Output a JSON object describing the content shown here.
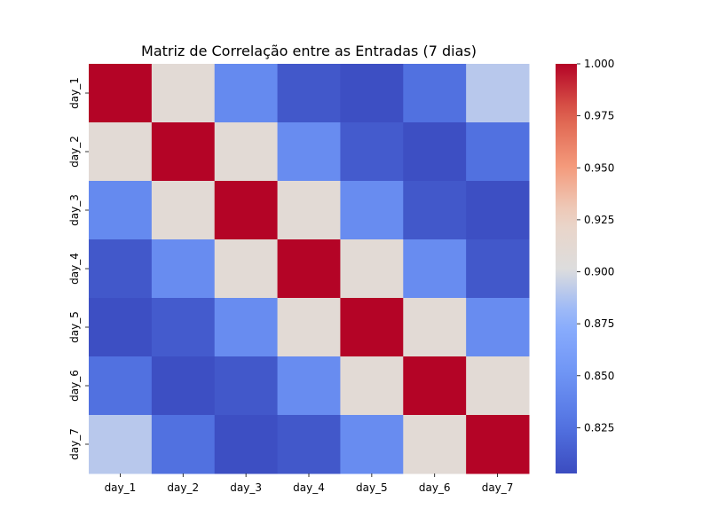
{
  "chart_data": {
    "type": "heatmap",
    "title": "Matriz de Correlação entre as Entradas (7 dias)",
    "xlabel": "",
    "ylabel": "",
    "x_labels": [
      "day_1",
      "day_2",
      "day_3",
      "day_4",
      "day_5",
      "day_6",
      "day_7"
    ],
    "y_labels": [
      "day_1",
      "day_2",
      "day_3",
      "day_4",
      "day_5",
      "day_6",
      "day_7"
    ],
    "values": [
      [
        1.0,
        0.91,
        0.843,
        0.81,
        0.805,
        0.825,
        0.89
      ],
      [
        0.91,
        1.0,
        0.91,
        0.845,
        0.812,
        0.805,
        0.825
      ],
      [
        0.843,
        0.91,
        1.0,
        0.91,
        0.845,
        0.81,
        0.805
      ],
      [
        0.81,
        0.845,
        0.91,
        1.0,
        0.91,
        0.845,
        0.81
      ],
      [
        0.805,
        0.812,
        0.845,
        0.91,
        1.0,
        0.91,
        0.845
      ],
      [
        0.825,
        0.805,
        0.81,
        0.845,
        0.91,
        1.0,
        0.91
      ],
      [
        0.89,
        0.825,
        0.805,
        0.81,
        0.845,
        0.91,
        1.0
      ]
    ],
    "colormap": "coolwarm",
    "vmin": 0.803,
    "vmax": 1.0,
    "colorbar": {
      "ticks": [
        0.825,
        0.85,
        0.875,
        0.9,
        0.925,
        0.95,
        0.975,
        1.0
      ],
      "tick_labels": [
        "0.825",
        "0.850",
        "0.875",
        "0.900",
        "0.925",
        "0.950",
        "0.975",
        "1.000"
      ]
    },
    "grid": false,
    "colorbar_placement": "right"
  }
}
